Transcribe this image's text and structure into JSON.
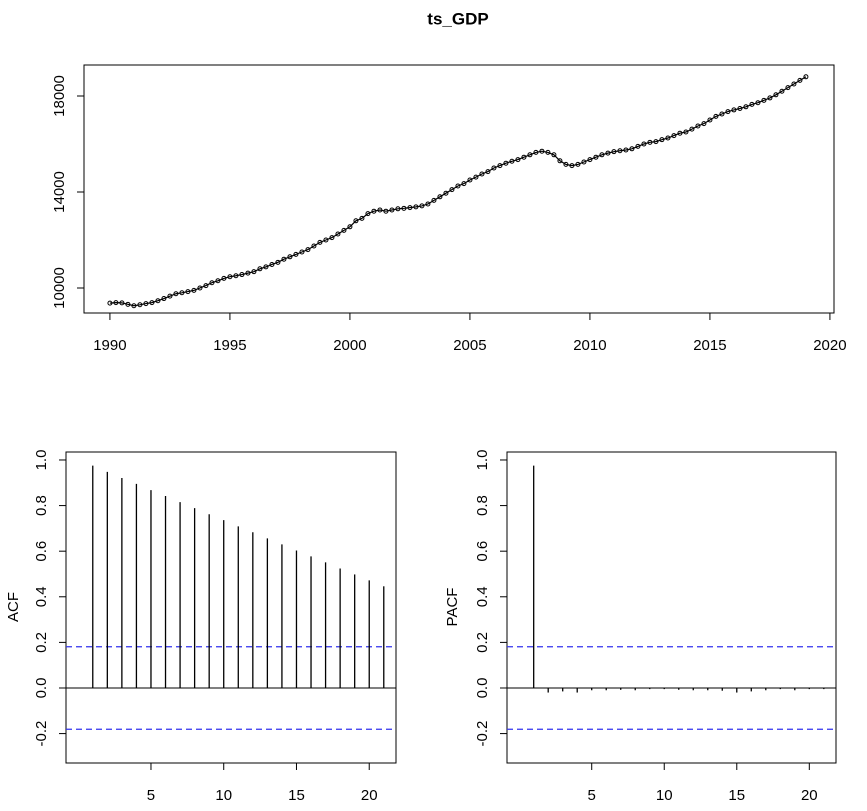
{
  "chart_data": [
    {
      "type": "line",
      "title": "ts_GDP",
      "color": "#000000",
      "x": [
        1990,
        1990.25,
        1990.5,
        1990.75,
        1991,
        1991.25,
        1991.5,
        1991.75,
        1992,
        1992.25,
        1992.5,
        1992.75,
        1993,
        1993.25,
        1993.5,
        1993.75,
        1994,
        1994.25,
        1994.5,
        1994.75,
        1995,
        1995.25,
        1995.5,
        1995.75,
        1996,
        1996.25,
        1996.5,
        1996.75,
        1997,
        1997.25,
        1997.5,
        1997.75,
        1998,
        1998.25,
        1998.5,
        1998.75,
        1999,
        1999.25,
        1999.5,
        1999.75,
        2000,
        2000.25,
        2000.5,
        2000.75,
        2001,
        2001.25,
        2001.5,
        2001.75,
        2002,
        2002.25,
        2002.5,
        2002.75,
        2003,
        2003.25,
        2003.5,
        2003.75,
        2004,
        2004.25,
        2004.5,
        2004.75,
        2005,
        2005.25,
        2005.5,
        2005.75,
        2006,
        2006.25,
        2006.5,
        2006.75,
        2007,
        2007.25,
        2007.5,
        2007.75,
        2008,
        2008.25,
        2008.5,
        2008.75,
        2009,
        2009.25,
        2009.5,
        2009.75,
        2010,
        2010.25,
        2010.5,
        2010.75,
        2011,
        2011.25,
        2011.5,
        2011.75,
        2012,
        2012.25,
        2012.5,
        2012.75,
        2013,
        2013.25,
        2013.5,
        2013.75,
        2014,
        2014.25,
        2014.5,
        2014.75,
        2015,
        2015.25,
        2015.5,
        2015.75,
        2016,
        2016.25,
        2016.5,
        2016.75,
        2017,
        2017.25,
        2017.5,
        2017.75,
        2018,
        2018.25,
        2018.5,
        2018.75,
        2019
      ],
      "values": [
        9370,
        9390,
        9380,
        9320,
        9260,
        9300,
        9350,
        9390,
        9470,
        9560,
        9660,
        9760,
        9800,
        9850,
        9900,
        10000,
        10100,
        10220,
        10300,
        10400,
        10470,
        10510,
        10560,
        10620,
        10680,
        10800,
        10880,
        10980,
        11070,
        11200,
        11300,
        11400,
        11500,
        11600,
        11750,
        11900,
        12000,
        12100,
        12250,
        12400,
        12550,
        12800,
        12900,
        13100,
        13200,
        13250,
        13200,
        13250,
        13300,
        13320,
        13350,
        13380,
        13420,
        13500,
        13650,
        13800,
        13950,
        14100,
        14250,
        14350,
        14500,
        14620,
        14750,
        14850,
        15000,
        15100,
        15200,
        15280,
        15350,
        15450,
        15550,
        15650,
        15700,
        15650,
        15550,
        15300,
        15150,
        15100,
        15150,
        15250,
        15350,
        15450,
        15550,
        15620,
        15680,
        15720,
        15750,
        15800,
        15900,
        16000,
        16070,
        16100,
        16180,
        16250,
        16350,
        16450,
        16500,
        16620,
        16750,
        16850,
        17000,
        17150,
        17250,
        17350,
        17420,
        17480,
        17550,
        17650,
        17720,
        17820,
        17920,
        18050,
        18200,
        18350,
        18500,
        18650,
        18800
      ],
      "xlim": [
        1988.92,
        2020.17
      ],
      "xticks": [
        1990,
        1995,
        2000,
        2005,
        2010,
        2015,
        2020
      ],
      "ylim": [
        8958,
        19292
      ],
      "yticks": [
        10000,
        14000,
        18000
      ]
    },
    {
      "type": "bar",
      "ylabel": "ACF",
      "color": "#000000",
      "ci": [
        0.181,
        -0.181
      ],
      "ci_color": "#3333ee",
      "x": [
        1,
        2,
        3,
        4,
        5,
        6,
        7,
        8,
        9,
        10,
        11,
        12,
        13,
        14,
        15,
        16,
        17,
        18,
        19,
        20,
        21
      ],
      "values": [
        0.975,
        0.948,
        0.921,
        0.895,
        0.868,
        0.842,
        0.815,
        0.789,
        0.762,
        0.736,
        0.709,
        0.683,
        0.656,
        0.63,
        0.603,
        0.577,
        0.551,
        0.524,
        0.498,
        0.472,
        0.446
      ],
      "xlim": [
        -0.84,
        21.84
      ],
      "xticks": [
        5,
        10,
        15,
        20
      ],
      "ylim": [
        -0.329,
        1.035
      ],
      "yticks": [
        -0.2,
        {
          "value": 0,
          "label": "0.0"
        },
        0.2,
        0.4,
        0.6,
        0.8,
        {
          "value": 1,
          "label": "1.0"
        }
      ]
    },
    {
      "type": "bar",
      "ylabel": "PACF",
      "color": "#000000",
      "ci": [
        0.181,
        -0.181
      ],
      "ci_color": "#3333ee",
      "x": [
        1,
        2,
        3,
        4,
        5,
        6,
        7,
        8,
        9,
        10,
        11,
        12,
        13,
        14,
        15,
        16,
        17,
        18,
        19,
        20,
        21
      ],
      "values": [
        0.975,
        -0.02,
        -0.015,
        -0.02,
        -0.01,
        -0.01,
        -0.008,
        -0.01,
        -0.005,
        -0.005,
        -0.008,
        -0.01,
        -0.01,
        -0.012,
        -0.02,
        -0.015,
        -0.01,
        -0.005,
        -0.01,
        -0.005,
        -0.005
      ],
      "xlim": [
        -0.84,
        21.84
      ],
      "xticks": [
        5,
        10,
        15,
        20
      ],
      "ylim": [
        -0.329,
        1.035
      ],
      "yticks": [
        -0.2,
        {
          "value": 0,
          "label": "0.0"
        },
        0.2,
        0.4,
        0.6,
        0.8,
        {
          "value": 1,
          "label": "1.0"
        }
      ]
    }
  ]
}
